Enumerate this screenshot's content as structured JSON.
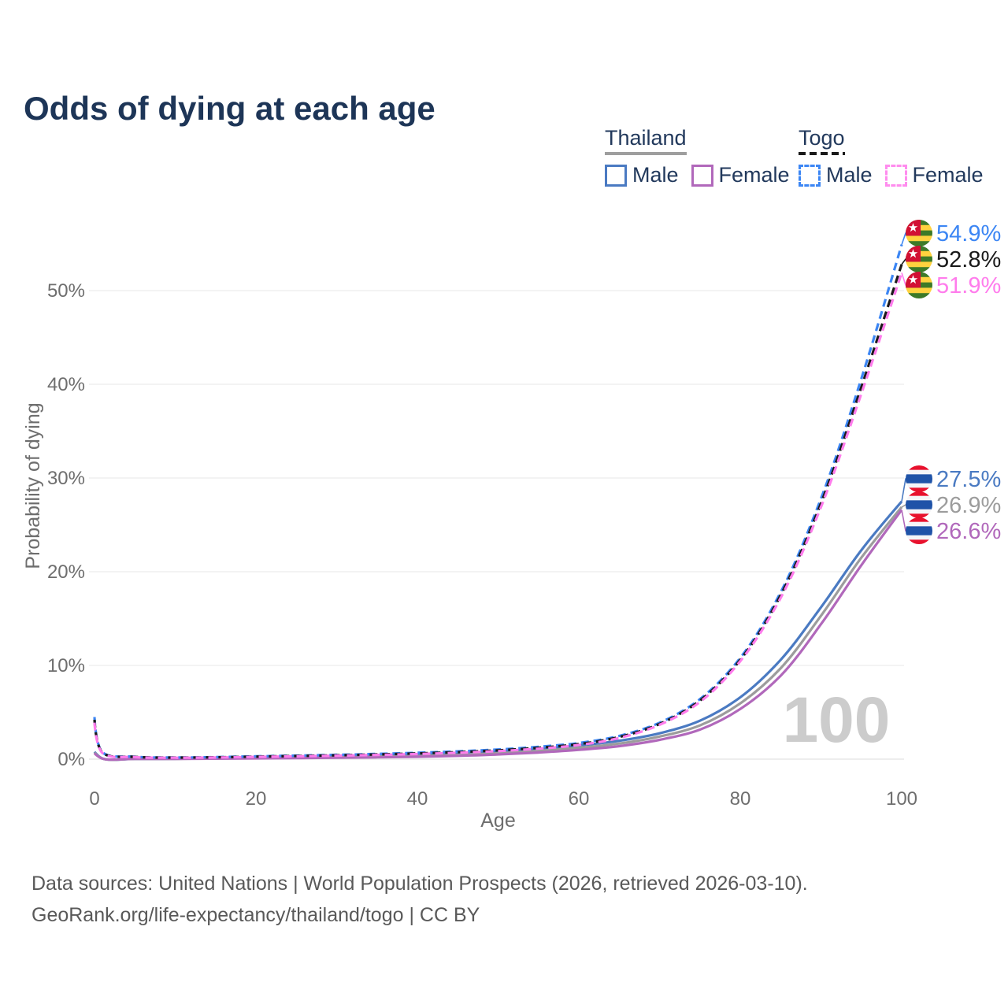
{
  "header": {
    "title": "Odds of dying at each age"
  },
  "legend": {
    "groups": [
      {
        "name": "Thailand",
        "line_style": "solid",
        "line_color": "#9e9e9e",
        "items": [
          {
            "label": "Male",
            "color": "#4a7ac2",
            "dashed": false
          },
          {
            "label": "Female",
            "color": "#b168bb",
            "dashed": false
          }
        ]
      },
      {
        "name": "Togo",
        "line_style": "dashed",
        "line_color": "#1a1a1a",
        "items": [
          {
            "label": "Male",
            "color": "#3c86f4",
            "dashed": true
          },
          {
            "label": "Female",
            "color": "#ff8cee",
            "dashed": true
          }
        ]
      }
    ]
  },
  "chart_data": {
    "type": "line",
    "title": "Odds of dying at each age",
    "xlabel": "Age",
    "ylabel": "Probability of dying",
    "xlim": [
      0,
      100
    ],
    "ylim_pct": [
      0,
      57
    ],
    "grid": "horizontal",
    "legend_position": "top-right",
    "watermark": "100",
    "x_ticks": [
      0,
      20,
      40,
      60,
      80,
      100
    ],
    "y_ticks": [
      {
        "v": 0,
        "label": "0%"
      },
      {
        "v": 10,
        "label": "10%"
      },
      {
        "v": 20,
        "label": "20%"
      },
      {
        "v": 30,
        "label": "30%"
      },
      {
        "v": 40,
        "label": "40%"
      },
      {
        "v": 50,
        "label": "50%"
      }
    ],
    "ages": [
      0,
      1,
      5,
      10,
      15,
      20,
      25,
      30,
      35,
      40,
      45,
      50,
      55,
      60,
      65,
      70,
      75,
      80,
      85,
      90,
      95,
      100
    ],
    "series": [
      {
        "name": "Togo Male",
        "country": "Togo",
        "sex": "Male",
        "color": "#3c86f4",
        "dashed": true,
        "end_label": "54.9%",
        "label_color": "#3c86f4",
        "flag": "togo-flag-icon",
        "values": [
          4.5,
          0.72,
          0.26,
          0.18,
          0.22,
          0.3,
          0.38,
          0.46,
          0.56,
          0.68,
          0.83,
          1.03,
          1.32,
          1.72,
          2.48,
          3.88,
          6.4,
          10.8,
          17.8,
          27.8,
          40.6,
          54.9
        ]
      },
      {
        "name": "Togo Both sexes",
        "country": "Togo",
        "sex": "Both",
        "color": "#1a1a1a",
        "dashed": true,
        "end_label": "52.8%",
        "label_color": "#1a1a1a",
        "flag": "togo-flag-icon",
        "values": [
          4.2,
          0.68,
          0.24,
          0.17,
          0.2,
          0.27,
          0.34,
          0.41,
          0.5,
          0.61,
          0.75,
          0.94,
          1.21,
          1.61,
          2.36,
          3.76,
          6.25,
          10.6,
          17.5,
          27.3,
          39.7,
          52.8
        ]
      },
      {
        "name": "Togo Female",
        "country": "Togo",
        "sex": "Female",
        "color": "#ff7cec",
        "dashed": true,
        "end_label": "51.9%",
        "label_color": "#ff7cec",
        "flag": "togo-flag-icon",
        "values": [
          3.9,
          0.64,
          0.22,
          0.15,
          0.18,
          0.24,
          0.3,
          0.37,
          0.45,
          0.55,
          0.68,
          0.86,
          1.12,
          1.51,
          2.26,
          3.66,
          6.1,
          10.45,
          17.2,
          26.9,
          39.0,
          51.9
        ]
      },
      {
        "name": "Thailand Male",
        "country": "Thailand",
        "sex": "Male",
        "color": "#4a7ac2",
        "dashed": false,
        "end_label": "27.5%",
        "label_color": "#4a7ac2",
        "flag": "thailand-flag-icon",
        "values": [
          0.78,
          0.062,
          0.03,
          0.042,
          0.1,
          0.16,
          0.21,
          0.26,
          0.33,
          0.42,
          0.56,
          0.77,
          1.06,
          1.46,
          1.96,
          2.76,
          4.1,
          6.6,
          10.6,
          16.2,
          22.3,
          27.5
        ]
      },
      {
        "name": "Thailand Both sexes",
        "country": "Thailand",
        "sex": "Both",
        "color": "#9c9c9c",
        "dashed": false,
        "end_label": "26.9%",
        "label_color": "#9c9c9c",
        "flag": "thailand-flag-icon",
        "values": [
          0.7,
          0.056,
          0.027,
          0.036,
          0.08,
          0.12,
          0.16,
          0.2,
          0.26,
          0.33,
          0.45,
          0.63,
          0.88,
          1.21,
          1.66,
          2.41,
          3.6,
          5.95,
          9.7,
          15.3,
          21.5,
          26.9
        ]
      },
      {
        "name": "Thailand Female",
        "country": "Thailand",
        "sex": "Female",
        "color": "#b168bb",
        "dashed": false,
        "end_label": "26.6%",
        "label_color": "#b168bb",
        "flag": "thailand-flag-icon",
        "values": [
          0.62,
          0.05,
          0.024,
          0.03,
          0.05,
          0.08,
          0.11,
          0.15,
          0.19,
          0.25,
          0.35,
          0.5,
          0.71,
          0.99,
          1.39,
          2.06,
          3.15,
          5.35,
          8.9,
          14.4,
          20.7,
          26.6
        ]
      }
    ],
    "flag_colors": {
      "togo": {
        "green": "#3d7a28",
        "yellow": "#ffd23f",
        "red": "#d21034",
        "star": "#ffffff"
      },
      "thailand": {
        "red": "#e8112d",
        "white": "#f4f5f8",
        "blue": "#1f53a8"
      }
    }
  },
  "footer": {
    "line1": "Data sources: United Nations | World Population Prospects (2026, retrieved 2026-03-10).",
    "line2": "GeoRank.org/life-expectancy/thailand/togo | CC BY"
  }
}
